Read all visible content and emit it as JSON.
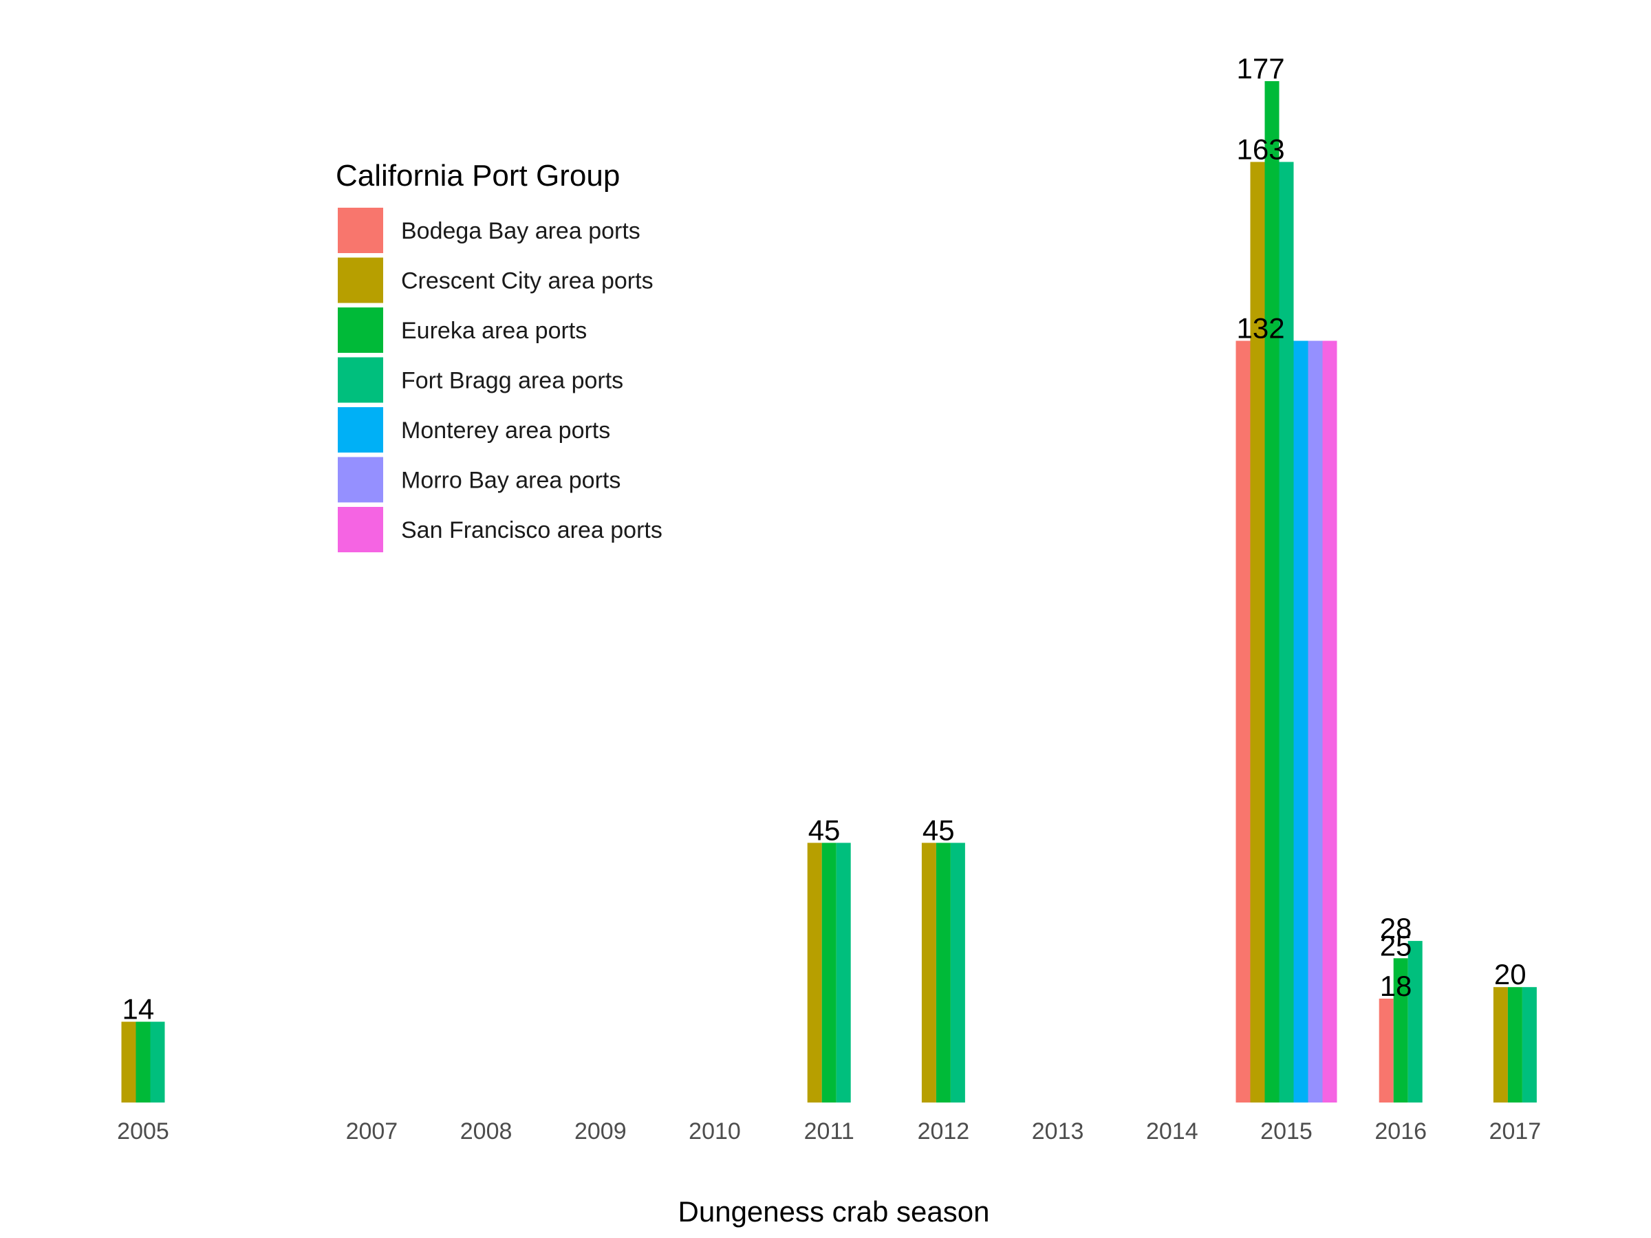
{
  "chart_data": {
    "type": "bar",
    "title": "",
    "xlabel": "Dungeness crab season",
    "ylabel": "",
    "ylim": [
      0,
      177
    ],
    "grid": false,
    "legend_title": "California Port Group",
    "legend_position": "top-left",
    "categories": [
      "2005",
      "2007",
      "2008",
      "2009",
      "2010",
      "2011",
      "2012",
      "2013",
      "2014",
      "2015",
      "2016",
      "2017"
    ],
    "series": [
      {
        "name": "Bodega Bay area ports",
        "color": "#F8766D",
        "values": [
          null,
          null,
          null,
          null,
          null,
          null,
          null,
          null,
          null,
          132,
          18,
          null
        ]
      },
      {
        "name": "Crescent City area ports",
        "color": "#B79F00",
        "values": [
          14,
          null,
          null,
          null,
          null,
          45,
          45,
          null,
          null,
          163,
          null,
          20
        ]
      },
      {
        "name": "Eureka area ports",
        "color": "#00BA38",
        "values": [
          14,
          null,
          null,
          null,
          null,
          45,
          45,
          null,
          null,
          177,
          25,
          20
        ]
      },
      {
        "name": "Fort Bragg area ports",
        "color": "#00BF7D",
        "values": [
          14,
          null,
          null,
          null,
          null,
          45,
          45,
          null,
          null,
          163,
          28,
          20
        ]
      },
      {
        "name": "Monterey area ports",
        "color": "#00B0F6",
        "values": [
          null,
          null,
          null,
          null,
          null,
          null,
          null,
          null,
          null,
          132,
          null,
          null
        ]
      },
      {
        "name": "Morro Bay area ports",
        "color": "#9590FF",
        "values": [
          null,
          null,
          null,
          null,
          null,
          null,
          null,
          null,
          null,
          132,
          null,
          null
        ]
      },
      {
        "name": "San Francisco area ports",
        "color": "#F564E3",
        "values": [
          null,
          null,
          null,
          null,
          null,
          null,
          null,
          null,
          null,
          132,
          null,
          null
        ]
      }
    ],
    "data_labels": [
      {
        "category": "2005",
        "text": "14"
      },
      {
        "category": "2011",
        "text": "45"
      },
      {
        "category": "2012",
        "text": "45"
      },
      {
        "category": "2015",
        "text": "177"
      },
      {
        "category": "2015",
        "text": "163"
      },
      {
        "category": "2015",
        "text": "132"
      },
      {
        "category": "2016",
        "text": "28"
      },
      {
        "category": "2016",
        "text": "25"
      },
      {
        "category": "2016",
        "text": "18"
      },
      {
        "category": "2017",
        "text": "20"
      }
    ]
  }
}
